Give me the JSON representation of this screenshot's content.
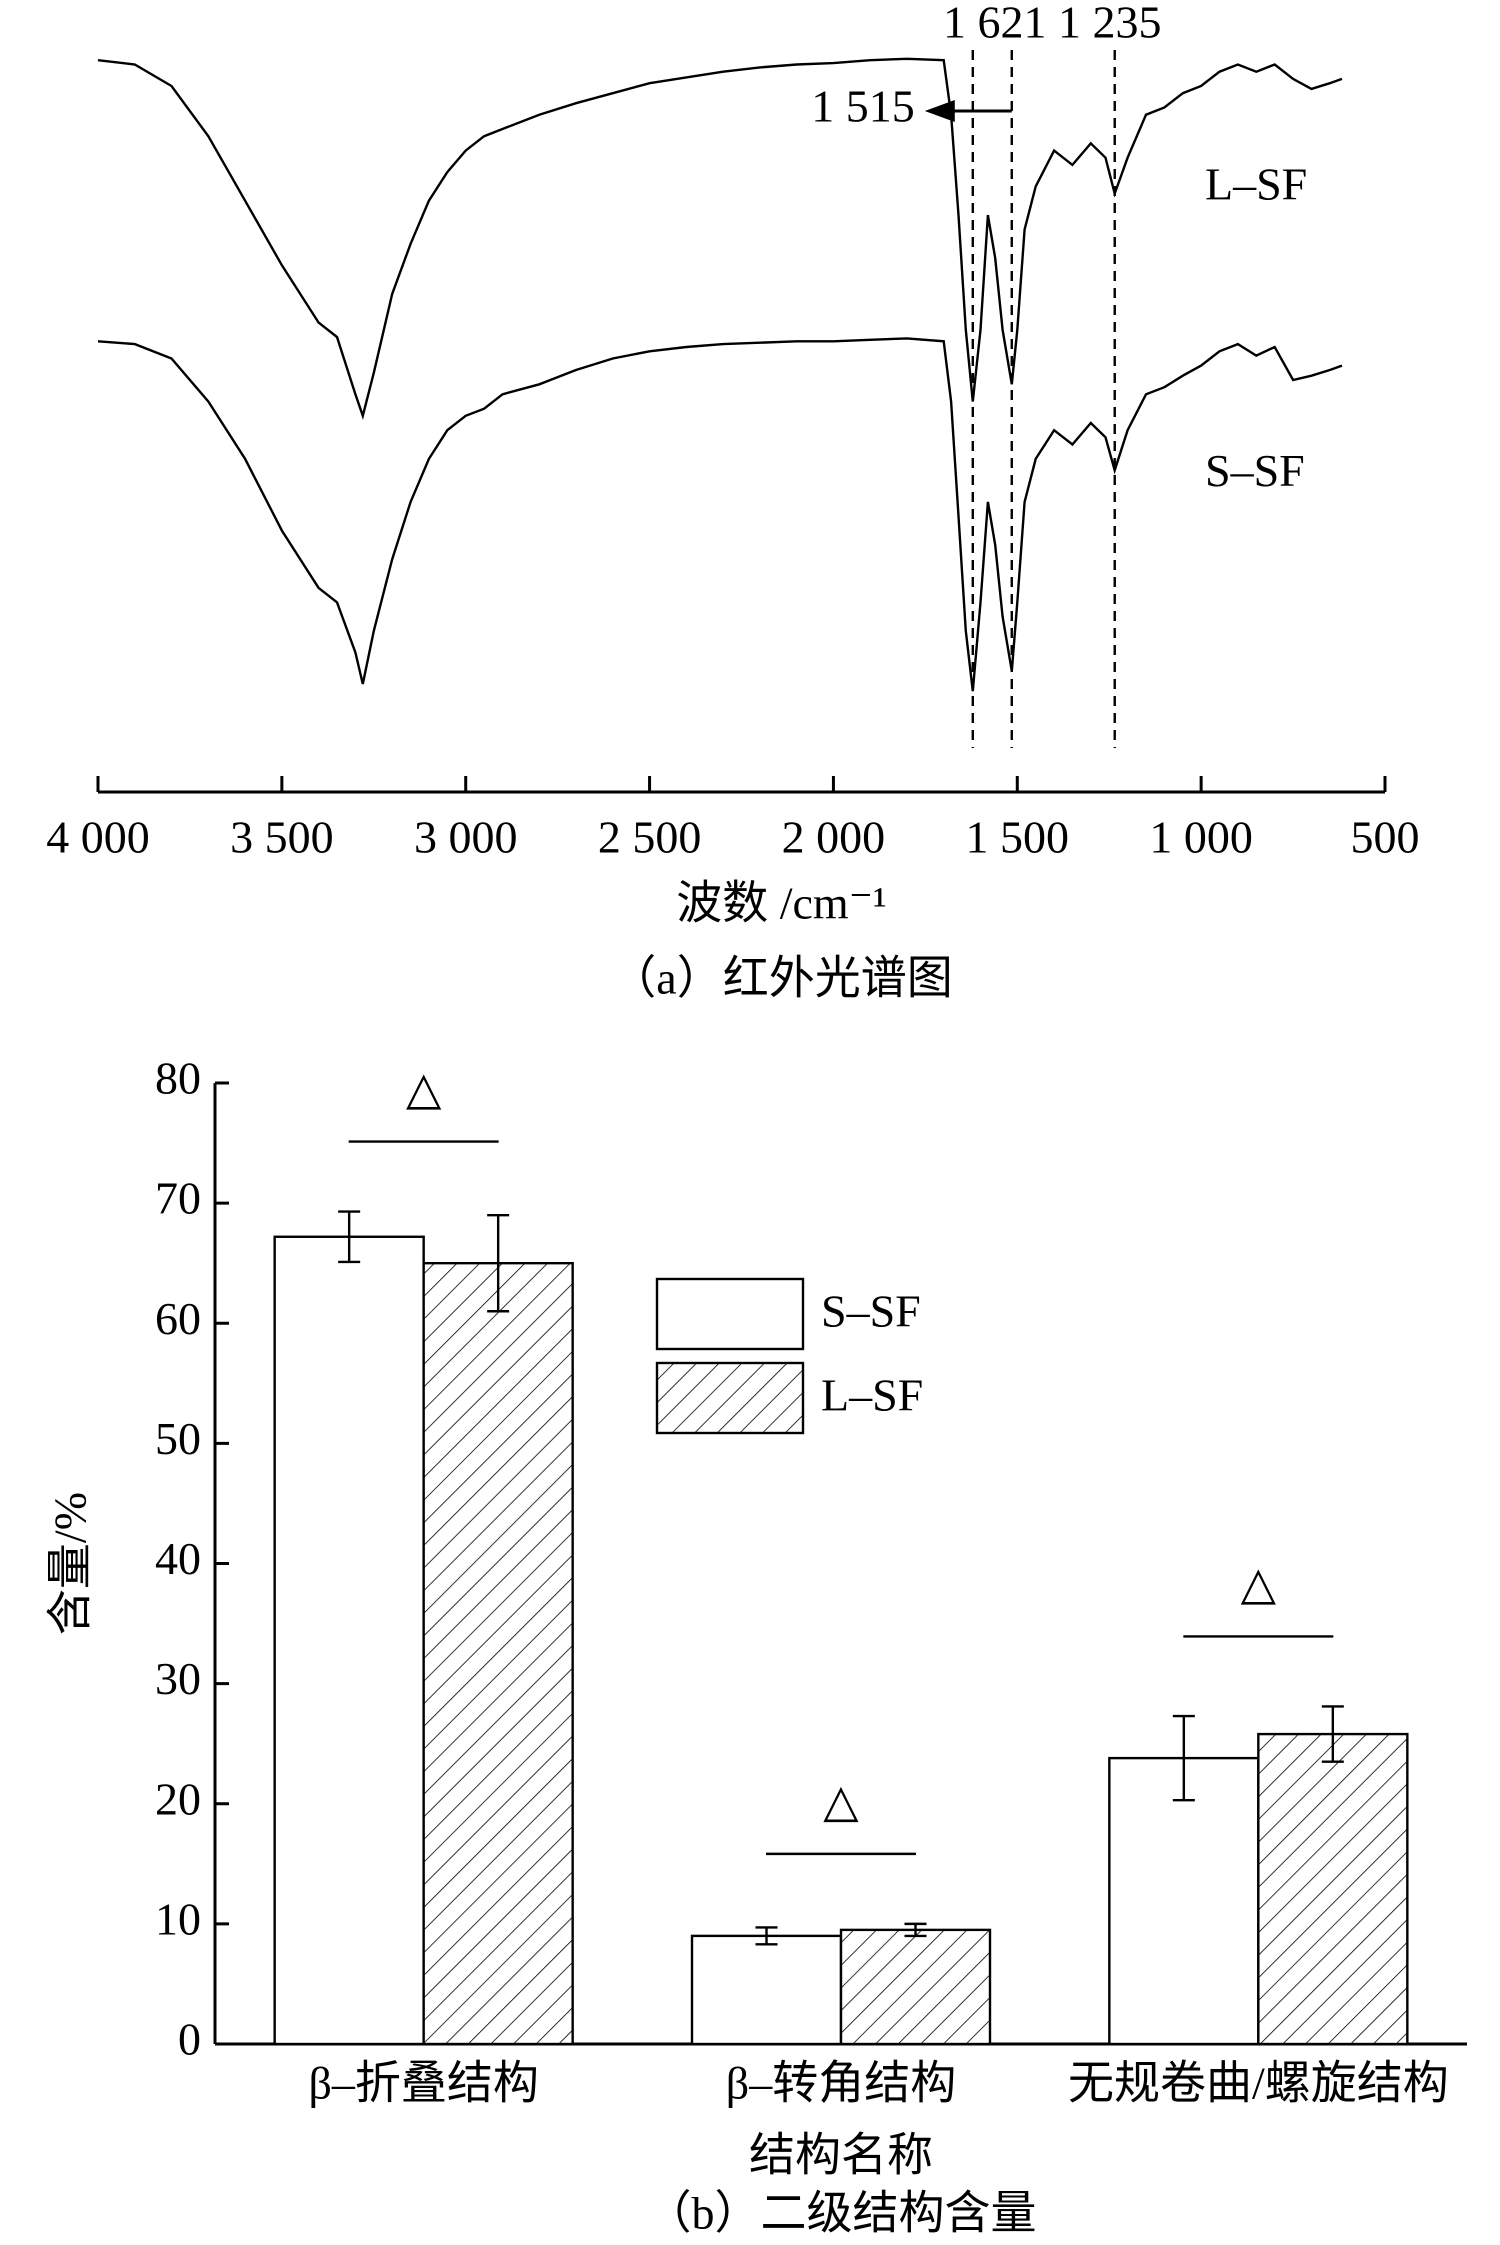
{
  "chart_data": [
    {
      "type": "line",
      "x": [
        4000,
        3900,
        3800,
        3700,
        3600,
        3500,
        3400,
        3350,
        3300,
        3280,
        3250,
        3200,
        3150,
        3100,
        3050,
        3000,
        2950,
        2900,
        2800,
        2700,
        2600,
        2500,
        2400,
        2300,
        2200,
        2100,
        2000,
        1900,
        1800,
        1700,
        1680,
        1660,
        1640,
        1621,
        1600,
        1580,
        1560,
        1540,
        1515,
        1500,
        1480,
        1450,
        1400,
        1350,
        1300,
        1260,
        1235,
        1200,
        1150,
        1100,
        1050,
        1000,
        950,
        900,
        850,
        800,
        750,
        700,
        650,
        617
      ],
      "series": [
        {
          "name": "L–SF",
          "color": "#000000",
          "values": [
            97.6,
            97,
            94,
            87,
            78,
            69,
            61,
            59,
            51,
            48,
            54,
            65,
            72,
            78,
            82,
            85,
            87,
            88,
            90,
            91.6,
            93,
            94.4,
            95.2,
            96,
            96.6,
            97,
            97.2,
            97.6,
            97.8,
            97.6,
            90,
            76,
            60,
            50,
            60,
            76,
            70,
            60,
            52.4,
            60,
            74,
            80,
            85,
            83,
            86,
            84,
            79,
            84,
            90,
            91,
            93,
            94,
            96,
            97,
            96,
            97,
            95,
            93.6,
            94.4,
            95
          ]
        },
        {
          "name": "S–SF",
          "color": "#000000",
          "values": [
            58.4,
            58,
            56,
            50,
            42,
            32,
            24,
            22,
            15,
            10.6,
            18,
            28,
            36,
            42,
            46,
            48,
            49,
            51,
            52.4,
            54.4,
            56,
            57,
            57.6,
            58,
            58.2,
            58.4,
            58.4,
            58.6,
            58.8,
            58.4,
            50,
            34,
            18,
            9.6,
            22,
            36,
            30,
            20,
            12.4,
            22,
            36,
            42,
            46,
            44,
            47,
            45,
            40.4,
            46,
            51,
            52,
            53.6,
            55,
            57,
            58,
            56.4,
            57.6,
            53,
            53.6,
            54.4,
            55
          ]
        }
      ],
      "xlim": [
        4000,
        500
      ],
      "xticks": [
        {
          "value": 4000,
          "label": "4 000"
        },
        {
          "value": 3500,
          "label": "3 500"
        },
        {
          "value": 3000,
          "label": "3 000"
        },
        {
          "value": 2500,
          "label": "2 500"
        },
        {
          "value": 2000,
          "label": "2 000"
        },
        {
          "value": 1500,
          "label": "1 500"
        },
        {
          "value": 1000,
          "label": "1 000"
        },
        500
      ],
      "ylim": [
        0,
        100
      ],
      "xlabel": "波数 /cm⁻¹",
      "caption": "（a）红外光谱图",
      "annotations": [
        {
          "text": "1 621",
          "x": 1621
        },
        {
          "text": "1 515",
          "x": 1515
        },
        {
          "text": "1 235",
          "x": 1235
        }
      ]
    },
    {
      "type": "bar",
      "categories": [
        "β–折叠结构",
        "β–转角结构",
        "无规卷曲/螺旋结构"
      ],
      "series": [
        {
          "name": "S–SF",
          "color": "#ffffff",
          "values": [
            67.2,
            9.0,
            23.8
          ],
          "errors": [
            2.1,
            0.7,
            3.5
          ]
        },
        {
          "name": "L–SF",
          "color": "hatch",
          "values": [
            65.0,
            9.5,
            25.8
          ],
          "errors": [
            4.0,
            0.5,
            2.3
          ]
        }
      ],
      "ylim": [
        0,
        80
      ],
      "yticks": [
        0,
        10,
        20,
        30,
        40,
        50,
        60,
        70,
        80
      ],
      "ylabel": "含量/%",
      "xlabel": "结构名称",
      "caption": "（b）二级结构含量",
      "significance": [
        "△",
        "△",
        "△"
      ]
    }
  ]
}
